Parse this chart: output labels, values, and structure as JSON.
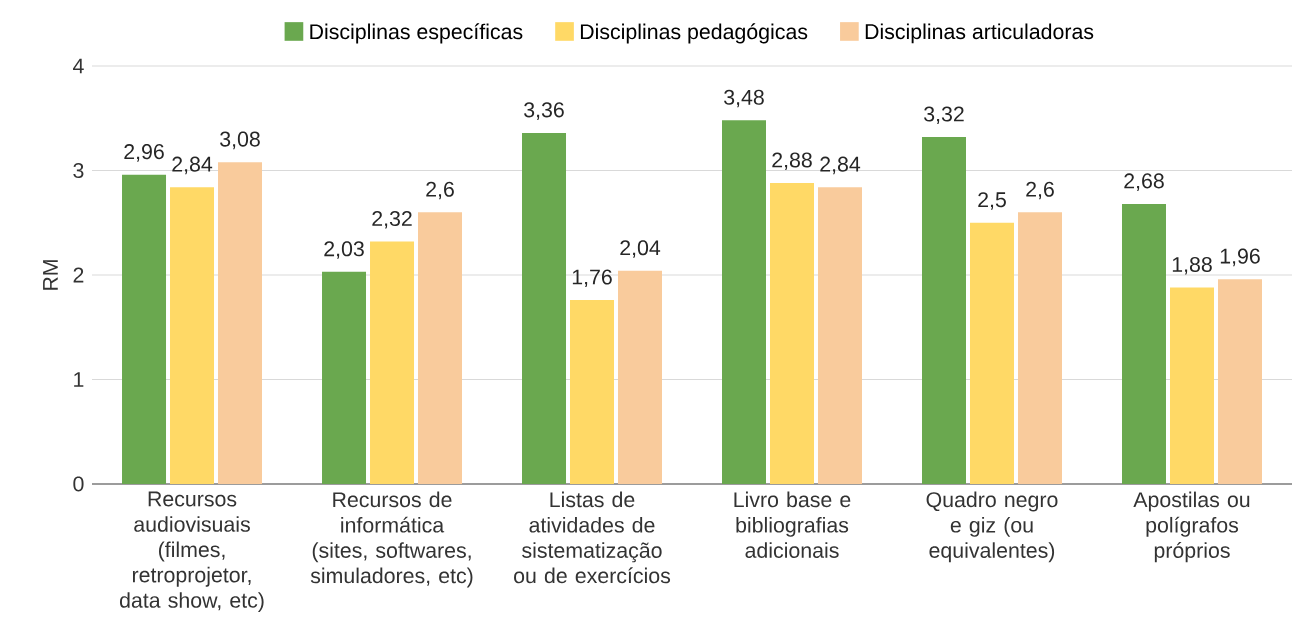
{
  "chart_data": {
    "type": "bar",
    "ylabel": "RM",
    "categories": [
      "Recursos audiovisuais (filmes, retroprojetor, data show, etc)",
      "Recursos de informática (sites, softwares, simuladores, etc)",
      "Listas de atividades de sistematização ou de exercícios",
      "Livro base e bibliografias adicionais",
      "Quadro negro e giz (ou equivalentes)",
      "Apostilas ou polígrafos próprios"
    ],
    "series": [
      {
        "name": "Disciplinas específicas",
        "color": "#6aa84f",
        "values": [
          2.96,
          2.03,
          3.36,
          3.48,
          3.32,
          2.68
        ],
        "value_labels": [
          "2,96",
          "2,03",
          "3,36",
          "3,48",
          "3,32",
          "2,68"
        ]
      },
      {
        "name": "Disciplinas pedagógicas",
        "color": "#ffd966",
        "values": [
          2.84,
          2.32,
          1.76,
          2.88,
          2.5,
          1.88
        ],
        "value_labels": [
          "2,84",
          "2,32",
          "1,76",
          "2,88",
          "2,5",
          "1,88"
        ]
      },
      {
        "name": "Disciplinas articuladoras",
        "color": "#f9cb9c",
        "values": [
          3.08,
          2.6,
          2.04,
          2.84,
          2.6,
          1.96
        ],
        "value_labels": [
          "3,08",
          "2,6",
          "2,04",
          "2,84",
          "2,6",
          "1,96"
        ]
      }
    ],
    "ylim": [
      0,
      4
    ],
    "yticks": [
      0,
      1,
      2,
      3,
      4
    ],
    "grid": "y",
    "legend": "top"
  }
}
